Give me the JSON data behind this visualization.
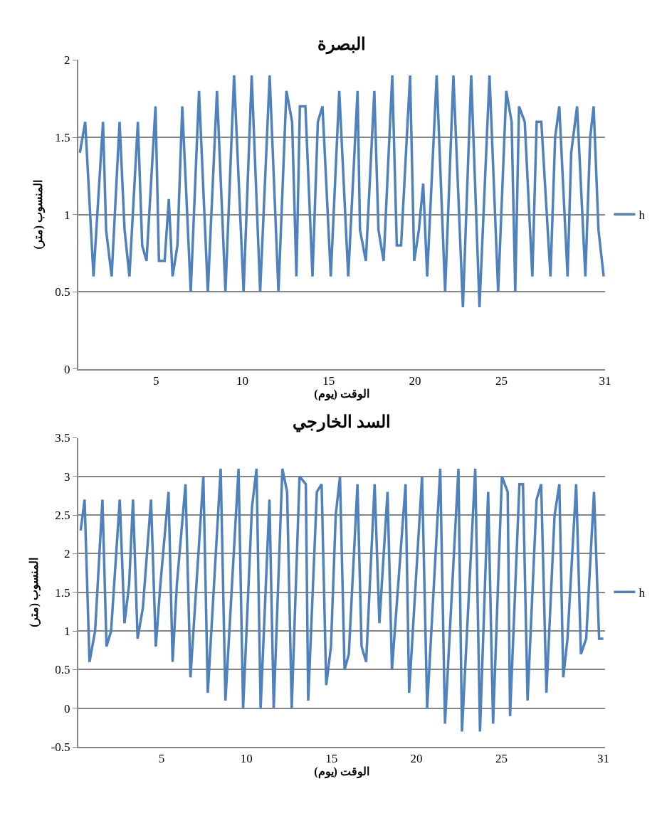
{
  "chart_data": [
    {
      "type": "line",
      "title": "البصرة",
      "xlabel": "الوقت (يوم)",
      "ylabel": "المنسوب (متر)",
      "xlim": [
        0.5,
        31
      ],
      "xticks": [
        5,
        10,
        15,
        20,
        25,
        31
      ],
      "ylim": [
        0,
        2
      ],
      "yticks": [
        0,
        0.5,
        1,
        1.5,
        2
      ],
      "grid": "y",
      "legend": "right",
      "marker": "none",
      "line_style": "solid",
      "series": [
        {
          "name": "h",
          "color": "#4f81bd",
          "x": [
            0.59,
            0.9,
            1.38,
            1.93,
            2.11,
            2.43,
            2.89,
            3.18,
            3.46,
            3.95,
            4.2,
            4.45,
            4.97,
            5.17,
            5.5,
            5.74,
            5.96,
            6.24,
            6.52,
            7.01,
            7.49,
            8.0,
            8.53,
            9.02,
            9.52,
            10.07,
            10.54,
            11.03,
            11.58,
            12.09,
            12.55,
            12.88,
            13.13,
            13.33,
            13.65,
            14.06,
            14.37,
            14.64,
            15.12,
            15.61,
            16.13,
            16.67,
            16.81,
            17.15,
            17.64,
            17.88,
            18.18,
            18.68,
            18.94,
            19.19,
            19.71,
            19.95,
            20.22,
            20.47,
            20.7,
            21.25,
            21.74,
            22.22,
            22.77,
            23.25,
            23.73,
            24.31,
            24.81,
            25.28,
            25.59,
            25.8,
            26.02,
            26.35,
            26.79,
            27.04,
            27.31,
            27.84,
            28.11,
            28.35,
            28.83,
            29.04,
            29.38,
            29.86,
            30.14,
            30.34,
            30.62,
            30.92
          ],
          "values": [
            1.4,
            1.6,
            0.6,
            1.6,
            0.9,
            0.6,
            1.6,
            0.9,
            0.6,
            1.6,
            0.8,
            0.7,
            1.7,
            0.7,
            0.7,
            1.1,
            0.6,
            0.8,
            1.7,
            0.5,
            1.8,
            0.5,
            1.8,
            0.5,
            1.9,
            0.5,
            1.9,
            0.5,
            1.9,
            0.5,
            1.8,
            1.6,
            0.6,
            1.7,
            1.7,
            0.6,
            1.6,
            1.7,
            0.6,
            1.8,
            0.6,
            1.8,
            0.9,
            0.7,
            1.8,
            0.9,
            0.7,
            1.9,
            0.8,
            0.8,
            1.9,
            0.7,
            0.9,
            1.2,
            0.6,
            1.9,
            0.5,
            1.9,
            0.4,
            1.9,
            0.4,
            1.9,
            0.5,
            1.8,
            1.6,
            0.5,
            1.7,
            1.6,
            0.6,
            1.6,
            1.6,
            0.6,
            1.5,
            1.7,
            0.6,
            1.4,
            1.7,
            0.6,
            1.5,
            1.7,
            0.9,
            0.6
          ]
        }
      ]
    },
    {
      "type": "line",
      "title": "السد الخارجي",
      "xlabel": "الوقت (يوم)",
      "ylabel": "المنسوب (متر)",
      "xlim": [
        0.1,
        31.1
      ],
      "xticks": [
        5,
        10,
        15,
        20,
        25,
        31
      ],
      "ylim": [
        -0.5,
        3.5
      ],
      "yticks": [
        -0.5,
        0,
        0.5,
        1,
        1.5,
        2,
        2.5,
        3,
        3.5
      ],
      "grid": "y",
      "legend": "right",
      "marker": "none",
      "line_style": "solid",
      "series": [
        {
          "name": "h",
          "color": "#4f81bd",
          "x": [
            0.24,
            0.47,
            0.76,
            1.09,
            1.52,
            1.76,
            2.03,
            2.54,
            2.82,
            3.09,
            3.32,
            3.59,
            3.9,
            4.38,
            4.66,
            4.93,
            5.41,
            5.65,
            5.9,
            6.41,
            6.7,
            7.46,
            7.72,
            8.48,
            8.76,
            9.53,
            9.8,
            10.32,
            10.59,
            10.83,
            11.35,
            11.6,
            12.11,
            12.39,
            12.66,
            13.12,
            13.49,
            13.63,
            14.14,
            14.42,
            14.69,
            14.97,
            15.25,
            15.5,
            15.77,
            16.02,
            16.53,
            16.77,
            17.04,
            17.54,
            17.82,
            18.3,
            18.56,
            19.36,
            19.57,
            20.33,
            20.63,
            21.4,
            21.68,
            22.47,
            22.68,
            23.46,
            23.74,
            24.22,
            24.51,
            25.03,
            25.37,
            25.51,
            26.06,
            26.27,
            26.54,
            27.07,
            27.34,
            27.65,
            28.13,
            28.41,
            28.64,
            28.89,
            29.4,
            29.68,
            29.99,
            30.45,
            30.75,
            31.0
          ],
          "values": [
            2.3,
            2.7,
            0.6,
            1.0,
            2.7,
            0.8,
            1.0,
            2.7,
            1.1,
            1.6,
            2.7,
            0.9,
            1.3,
            2.7,
            0.8,
            1.6,
            2.8,
            0.6,
            1.6,
            2.9,
            0.4,
            3.0,
            0.2,
            3.1,
            0.1,
            3.1,
            0.0,
            2.6,
            3.1,
            0.0,
            2.7,
            0.0,
            3.1,
            2.8,
            0.0,
            3.0,
            2.9,
            0.1,
            2.8,
            2.9,
            0.3,
            0.8,
            2.5,
            3.0,
            0.5,
            0.7,
            2.9,
            0.8,
            0.6,
            2.9,
            1.1,
            2.8,
            0.5,
            2.9,
            0.2,
            3.0,
            0.0,
            3.1,
            -0.2,
            3.1,
            -0.3,
            3.1,
            -0.3,
            2.8,
            -0.2,
            3.0,
            2.8,
            -0.1,
            2.9,
            2.9,
            0.1,
            2.7,
            2.9,
            0.2,
            2.5,
            2.9,
            0.4,
            0.9,
            2.9,
            0.7,
            0.9,
            2.8,
            0.9,
            0.9
          ]
        }
      ]
    }
  ]
}
